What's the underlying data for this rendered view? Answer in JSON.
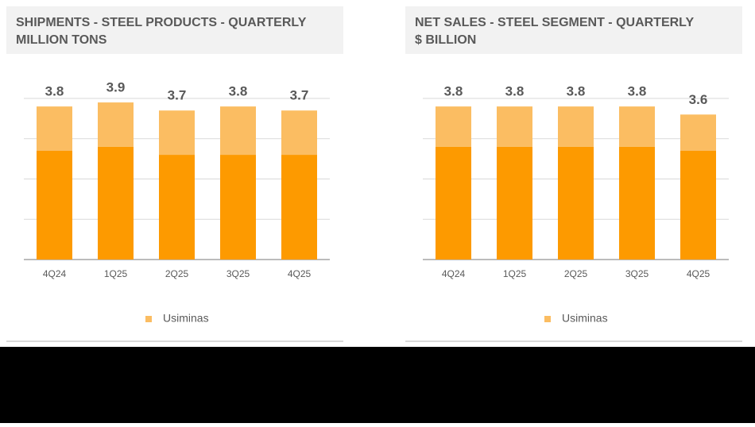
{
  "chart_data": [
    {
      "type": "stacked-bar",
      "title": "SHIPMENTS - STEEL PRODUCTS - QUARTERLY",
      "subtitle": "MILLION TONS",
      "categories": [
        "4Q24",
        "1Q25",
        "2Q25",
        "3Q25",
        "4Q25"
      ],
      "series": [
        {
          "color": "#fd9a00",
          "values": [
            2.7,
            2.8,
            2.6,
            2.6,
            2.6
          ]
        },
        {
          "name": "Usiminas",
          "color": "#fbbd62",
          "values": [
            1.1,
            1.1,
            1.1,
            1.2,
            1.1
          ]
        }
      ],
      "totals": [
        3.8,
        3.9,
        3.7,
        3.8,
        3.7
      ],
      "ylim": [
        0,
        4
      ],
      "yticks": [
        0,
        1,
        2,
        3,
        4
      ],
      "grid": true
    },
    {
      "type": "stacked-bar",
      "title": "NET SALES - STEEL SEGMENT - QUARTERLY",
      "subtitle": "$ BILLION",
      "categories": [
        "4Q24",
        "1Q25",
        "2Q25",
        "3Q25",
        "4Q25"
      ],
      "series": [
        {
          "color": "#fd9a00",
          "values": [
            2.8,
            2.8,
            2.8,
            2.8,
            2.7
          ]
        },
        {
          "name": "Usiminas",
          "color": "#fbbd62",
          "values": [
            1.0,
            1.0,
            1.0,
            1.0,
            0.9
          ]
        }
      ],
      "totals": [
        3.8,
        3.8,
        3.8,
        3.8,
        3.6
      ],
      "ylim": [
        0,
        4
      ],
      "yticks": [
        0,
        1,
        2,
        3,
        4
      ],
      "grid": true
    }
  ]
}
